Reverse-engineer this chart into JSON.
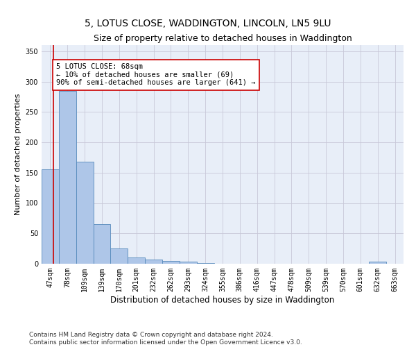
{
  "title": "5, LOTUS CLOSE, WADDINGTON, LINCOLN, LN5 9LU",
  "subtitle": "Size of property relative to detached houses in Waddington",
  "xlabel": "Distribution of detached houses by size in Waddington",
  "ylabel": "Number of detached properties",
  "bar_labels": [
    "47sqm",
    "78sqm",
    "109sqm",
    "139sqm",
    "170sqm",
    "201sqm",
    "232sqm",
    "262sqm",
    "293sqm",
    "324sqm",
    "355sqm",
    "386sqm",
    "416sqm",
    "447sqm",
    "478sqm",
    "509sqm",
    "539sqm",
    "570sqm",
    "601sqm",
    "632sqm",
    "663sqm"
  ],
  "bar_heights": [
    155,
    285,
    168,
    65,
    25,
    10,
    7,
    5,
    4,
    1,
    0,
    0,
    0,
    0,
    0,
    0,
    0,
    0,
    0,
    3,
    0
  ],
  "bar_color": "#aec6e8",
  "bar_edge_color": "#5589bb",
  "ylim": [
    0,
    360
  ],
  "yticks": [
    0,
    50,
    100,
    150,
    200,
    250,
    300,
    350
  ],
  "property_line_color": "#cc0000",
  "annotation_text": "5 LOTUS CLOSE: 68sqm\n← 10% of detached houses are smaller (69)\n90% of semi-detached houses are larger (641) →",
  "annotation_box_color": "#cc0000",
  "background_color": "#e8eef8",
  "grid_color": "#c8c8d8",
  "footer_text": "Contains HM Land Registry data © Crown copyright and database right 2024.\nContains public sector information licensed under the Open Government Licence v3.0.",
  "title_fontsize": 10,
  "subtitle_fontsize": 9,
  "xlabel_fontsize": 8.5,
  "ylabel_fontsize": 8,
  "tick_fontsize": 7,
  "annotation_fontsize": 7.5,
  "footer_fontsize": 6.5
}
